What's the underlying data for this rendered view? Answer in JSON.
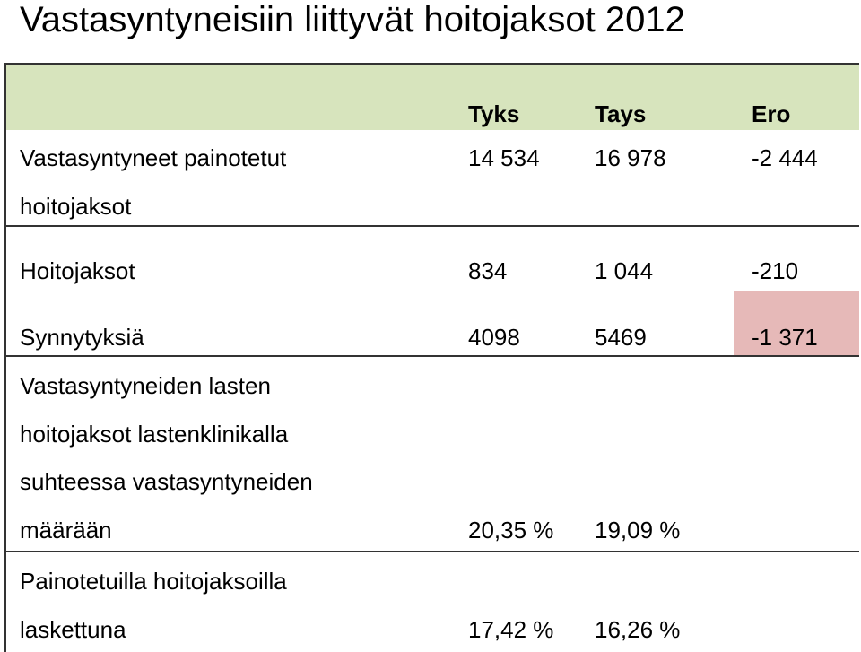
{
  "title": "Vastasyntyneisiin liittyvät hoitojaksot 2012",
  "table": {
    "headers": [
      "Tyks",
      "Tays",
      "Ero"
    ],
    "rows": [
      {
        "label": [
          "Vastasyntyneet painotetut",
          "hoitojaksot"
        ],
        "values": [
          "14 534",
          "16 978",
          "-2 444"
        ]
      },
      {
        "label": [
          "Hoitojaksot"
        ],
        "values": [
          "834",
          "1 044",
          "-210"
        ]
      },
      {
        "label": [
          "Synnytyksiä"
        ],
        "values": [
          "4098",
          "5469",
          "-1 371"
        ]
      },
      {
        "label": [
          "Vastasyntyneiden lasten",
          "hoitojaksot lastenklinikalla",
          "suhteessa vastasyntyneiden",
          "määrään"
        ],
        "values": [
          "20,35 %",
          "19,09 %"
        ]
      },
      {
        "label": [
          "Painotetuilla hoitojaksoilla",
          "laskettuna"
        ],
        "values": [
          "17,42 %",
          "16,26 %"
        ]
      }
    ]
  }
}
